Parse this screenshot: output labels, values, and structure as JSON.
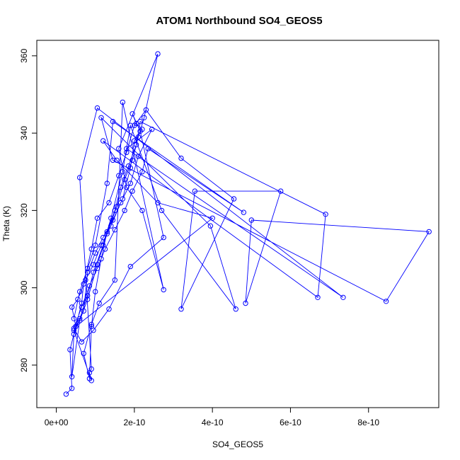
{
  "chart_data": {
    "type": "scatter",
    "title": "ATOM1 Northbound SO4_GEOS5",
    "xlabel": "SO4_GEOS5",
    "ylabel": "Theta (K)",
    "xlim": [
      -5e-11,
      9.8e-10
    ],
    "ylim": [
      269,
      364
    ],
    "x_ticks": [
      0,
      2e-10,
      4e-10,
      6e-10,
      8e-10
    ],
    "x_tick_labels": [
      "0e+00",
      "2e-10",
      "4e-10",
      "6e-10",
      "8e-10"
    ],
    "y_ticks": [
      280,
      300,
      320,
      340,
      360
    ],
    "y_tick_labels": [
      "280",
      "300",
      "320",
      "340",
      "360"
    ],
    "grid": false,
    "marker": "open-circle",
    "connected": true,
    "color": "#0000ff",
    "series": [
      {
        "points": [
          [
            2.5e-11,
            272.5
          ],
          [
            4e-11,
            274.0
          ],
          [
            3.5e-11,
            284.0
          ],
          [
            5e-11,
            290.0
          ],
          [
            6.5e-11,
            296.0
          ],
          [
            7e-11,
            301.0
          ],
          [
            9e-11,
            310.0
          ],
          [
            1.05e-10,
            318.0
          ],
          [
            1.35e-10,
            322.0
          ],
          [
            1.6e-10,
            329.0
          ],
          [
            1.8e-10,
            335.0
          ],
          [
            2e-10,
            342.0
          ],
          [
            2.3e-10,
            346.0
          ],
          [
            3.2e-10,
            333.5
          ],
          [
            4.55e-10,
            323.0
          ],
          [
            3.2e-10,
            294.5
          ],
          [
            3.55e-10,
            325.0
          ],
          [
            5.75e-10,
            325.0
          ],
          [
            4.85e-10,
            296.0
          ],
          [
            5e-10,
            317.5
          ],
          [
            9.55e-10,
            314.5
          ],
          [
            8.45e-10,
            296.5
          ],
          [
            1.45e-10,
            333.0
          ],
          [
            1.15e-10,
            344.0
          ],
          [
            3.95e-10,
            316.0
          ],
          [
            4.6e-10,
            294.5
          ],
          [
            2.7e-10,
            320.0
          ],
          [
            1.9e-10,
            342.0
          ],
          [
            1.7e-10,
            330.0
          ],
          [
            1.4e-10,
            318.0
          ],
          [
            1.2e-10,
            311.0
          ],
          [
            9.5e-11,
            304.0
          ],
          [
            8e-11,
            298.0
          ],
          [
            6e-11,
            292.0
          ],
          [
            4.5e-11,
            288.0
          ],
          [
            4e-11,
            277.0
          ],
          [
            6e-11,
            291.5
          ],
          [
            8e-11,
            297.0
          ],
          [
            1.05e-10,
            306.0
          ],
          [
            1.3e-10,
            314.0
          ],
          [
            1.55e-10,
            321.0
          ],
          [
            1.75e-10,
            328.0
          ],
          [
            1.95e-10,
            333.0
          ],
          [
            2.1e-10,
            339.0
          ],
          [
            2.25e-10,
            344.0
          ],
          [
            2.6e-10,
            360.5
          ],
          [
            1.6e-10,
            336.0
          ],
          [
            1.8e-10,
            326.0
          ],
          [
            2.2e-10,
            320.0
          ],
          [
            2.75e-10,
            299.5
          ],
          [
            1.7e-10,
            348.0
          ],
          [
            1.5e-10,
            302.0
          ],
          [
            1.1e-10,
            296.0
          ],
          [
            9e-11,
            290.5
          ],
          [
            7e-11,
            283.0
          ],
          [
            8.5e-11,
            276.5
          ],
          [
            9e-11,
            290.0
          ],
          [
            1e-10,
            299.0
          ],
          [
            1.15e-10,
            307.5
          ],
          [
            1.3e-10,
            314.5
          ],
          [
            1.5e-10,
            320.0
          ],
          [
            1.65e-10,
            326.0
          ],
          [
            1.85e-10,
            331.5
          ],
          [
            2.05e-10,
            337.0
          ],
          [
            2.15e-10,
            343.0
          ],
          [
            6.9e-10,
            319.0
          ],
          [
            6.7e-10,
            297.5
          ],
          [
            1.2e-10,
            338.0
          ],
          [
            1.55e-10,
            333.0
          ],
          [
            2.6e-10,
            322.0
          ],
          [
            4e-10,
            318.0
          ],
          [
            5e-11,
            290.0
          ],
          [
            4e-11,
            295.0
          ],
          [
            5.5e-11,
            297.0
          ],
          [
            7.5e-11,
            302.0
          ],
          [
            9.5e-11,
            306.0
          ],
          [
            1.15e-10,
            311.0
          ],
          [
            1.4e-10,
            316.0
          ],
          [
            1.65e-10,
            322.0
          ],
          [
            1.9e-10,
            327.0
          ],
          [
            2.1e-10,
            334.0
          ],
          [
            2.45e-10,
            341.0
          ],
          [
            1.8e-10,
            336.0
          ],
          [
            7.35e-10,
            297.5
          ],
          [
            1.05e-10,
            346.5
          ],
          [
            6e-11,
            328.5
          ],
          [
            9e-11,
            279.0
          ],
          [
            8.5e-11,
            278.0
          ],
          [
            9e-11,
            276.0
          ],
          [
            4.5e-11,
            289.0
          ],
          [
            7e-11,
            294.0
          ],
          [
            8e-11,
            304.0
          ],
          [
            1e-10,
            309.0
          ],
          [
            1.2e-10,
            313.0
          ],
          [
            1.45e-10,
            317.5
          ],
          [
            1.7e-10,
            323.0
          ],
          [
            1.9e-10,
            331.0
          ],
          [
            2e-10,
            338.0
          ],
          [
            2.2e-10,
            341.0
          ],
          [
            2.05e-10,
            342.5
          ],
          [
            1.95e-10,
            345.0
          ],
          [
            2.15e-10,
            340.5
          ],
          [
            2.75e-10,
            313.0
          ],
          [
            1.9e-10,
            305.5
          ],
          [
            1.35e-10,
            294.5
          ],
          [
            9.5e-11,
            289.0
          ],
          [
            6.5e-11,
            286.0
          ],
          [
            4.5e-11,
            289.5
          ],
          [
            6.5e-11,
            295.0
          ],
          [
            8.5e-11,
            300.5
          ],
          [
            1.05e-10,
            305.0
          ],
          [
            1.25e-10,
            310.0
          ],
          [
            1.5e-10,
            315.0
          ],
          [
            1.75e-10,
            320.0
          ],
          [
            1.95e-10,
            325.0
          ],
          [
            2.2e-10,
            330.0
          ],
          [
            2.35e-10,
            336.0
          ],
          [
            4.8e-10,
            319.5
          ],
          [
            1.45e-10,
            343.0
          ],
          [
            1.3e-10,
            327.0
          ],
          [
            1e-10,
            311.0
          ],
          [
            8e-11,
            305.0
          ],
          [
            6e-11,
            299.0
          ],
          [
            4.5e-11,
            292.0
          ]
        ]
      }
    ]
  }
}
